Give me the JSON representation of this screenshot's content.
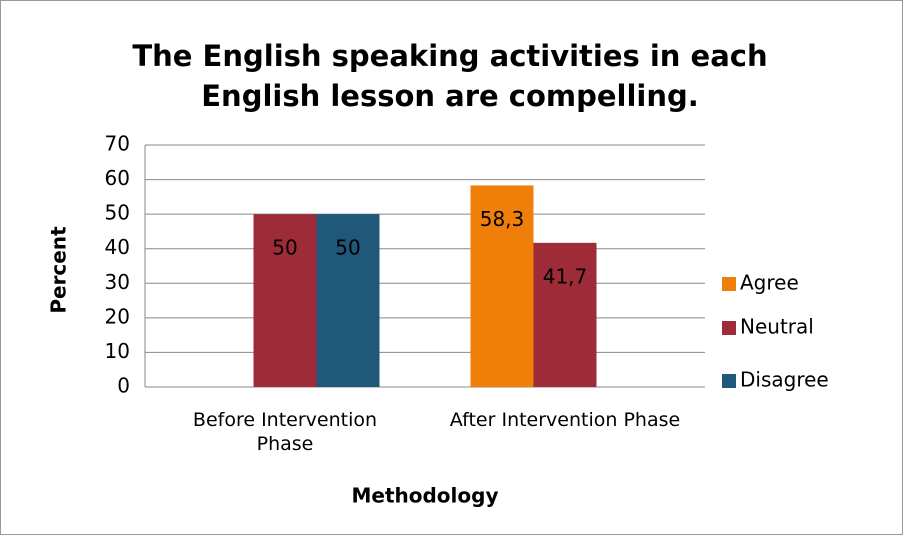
{
  "chart_data": {
    "type": "bar",
    "title": "The English speaking activities in each English lesson are compelling.",
    "categories": [
      "Before Intervention Phase",
      "After Intervention Phase"
    ],
    "series": [
      {
        "name": "Agree",
        "color": "#f07f0a",
        "values": [
          null,
          58.3
        ],
        "value_labels": [
          null,
          "58,3"
        ]
      },
      {
        "name": "Neutral",
        "color": "#9e2b38",
        "values": [
          50,
          41.7
        ],
        "value_labels": [
          "50",
          "41,7"
        ]
      },
      {
        "name": "Disagree",
        "color": "#1f5878",
        "values": [
          50,
          null
        ],
        "value_labels": [
          "50",
          null
        ]
      }
    ],
    "x_label": "Methodology",
    "y_label": "Percent",
    "ylim": [
      0,
      70
    ],
    "yticks": [
      0,
      10,
      20,
      30,
      40,
      50,
      60,
      70
    ],
    "grid": true,
    "legend": "right"
  }
}
